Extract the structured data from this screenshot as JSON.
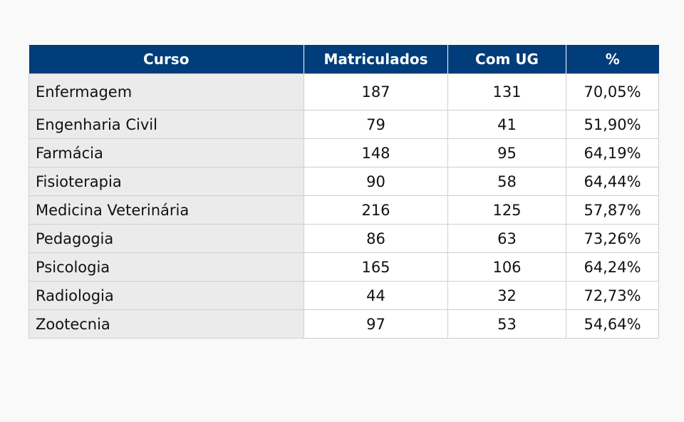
{
  "table": {
    "headers": [
      "Curso",
      "Matriculados",
      "Com UG",
      "%"
    ],
    "rows": [
      [
        "Enfermagem",
        "187",
        "131",
        "70,05%"
      ],
      [
        "Engenharia Civil",
        "79",
        "41",
        "51,90%"
      ],
      [
        "Farmácia",
        "148",
        "95",
        "64,19%"
      ],
      [
        "Fisioterapia",
        "90",
        "58",
        "64,44%"
      ],
      [
        "Medicina Veterinária",
        "216",
        "125",
        "57,87%"
      ],
      [
        "Pedagogia",
        "86",
        "63",
        "73,26%"
      ],
      [
        "Psicologia",
        "165",
        "106",
        "64,24%"
      ],
      [
        "Radiologia",
        "44",
        "32",
        "72,73%"
      ],
      [
        "Zootecnia",
        "97",
        "53",
        "54,64%"
      ]
    ]
  },
  "colors": {
    "header_background": "#003d7a",
    "header_text": "#ffffff",
    "first_column_background": "#ebebeb",
    "page_background": "#f9f9f9"
  }
}
